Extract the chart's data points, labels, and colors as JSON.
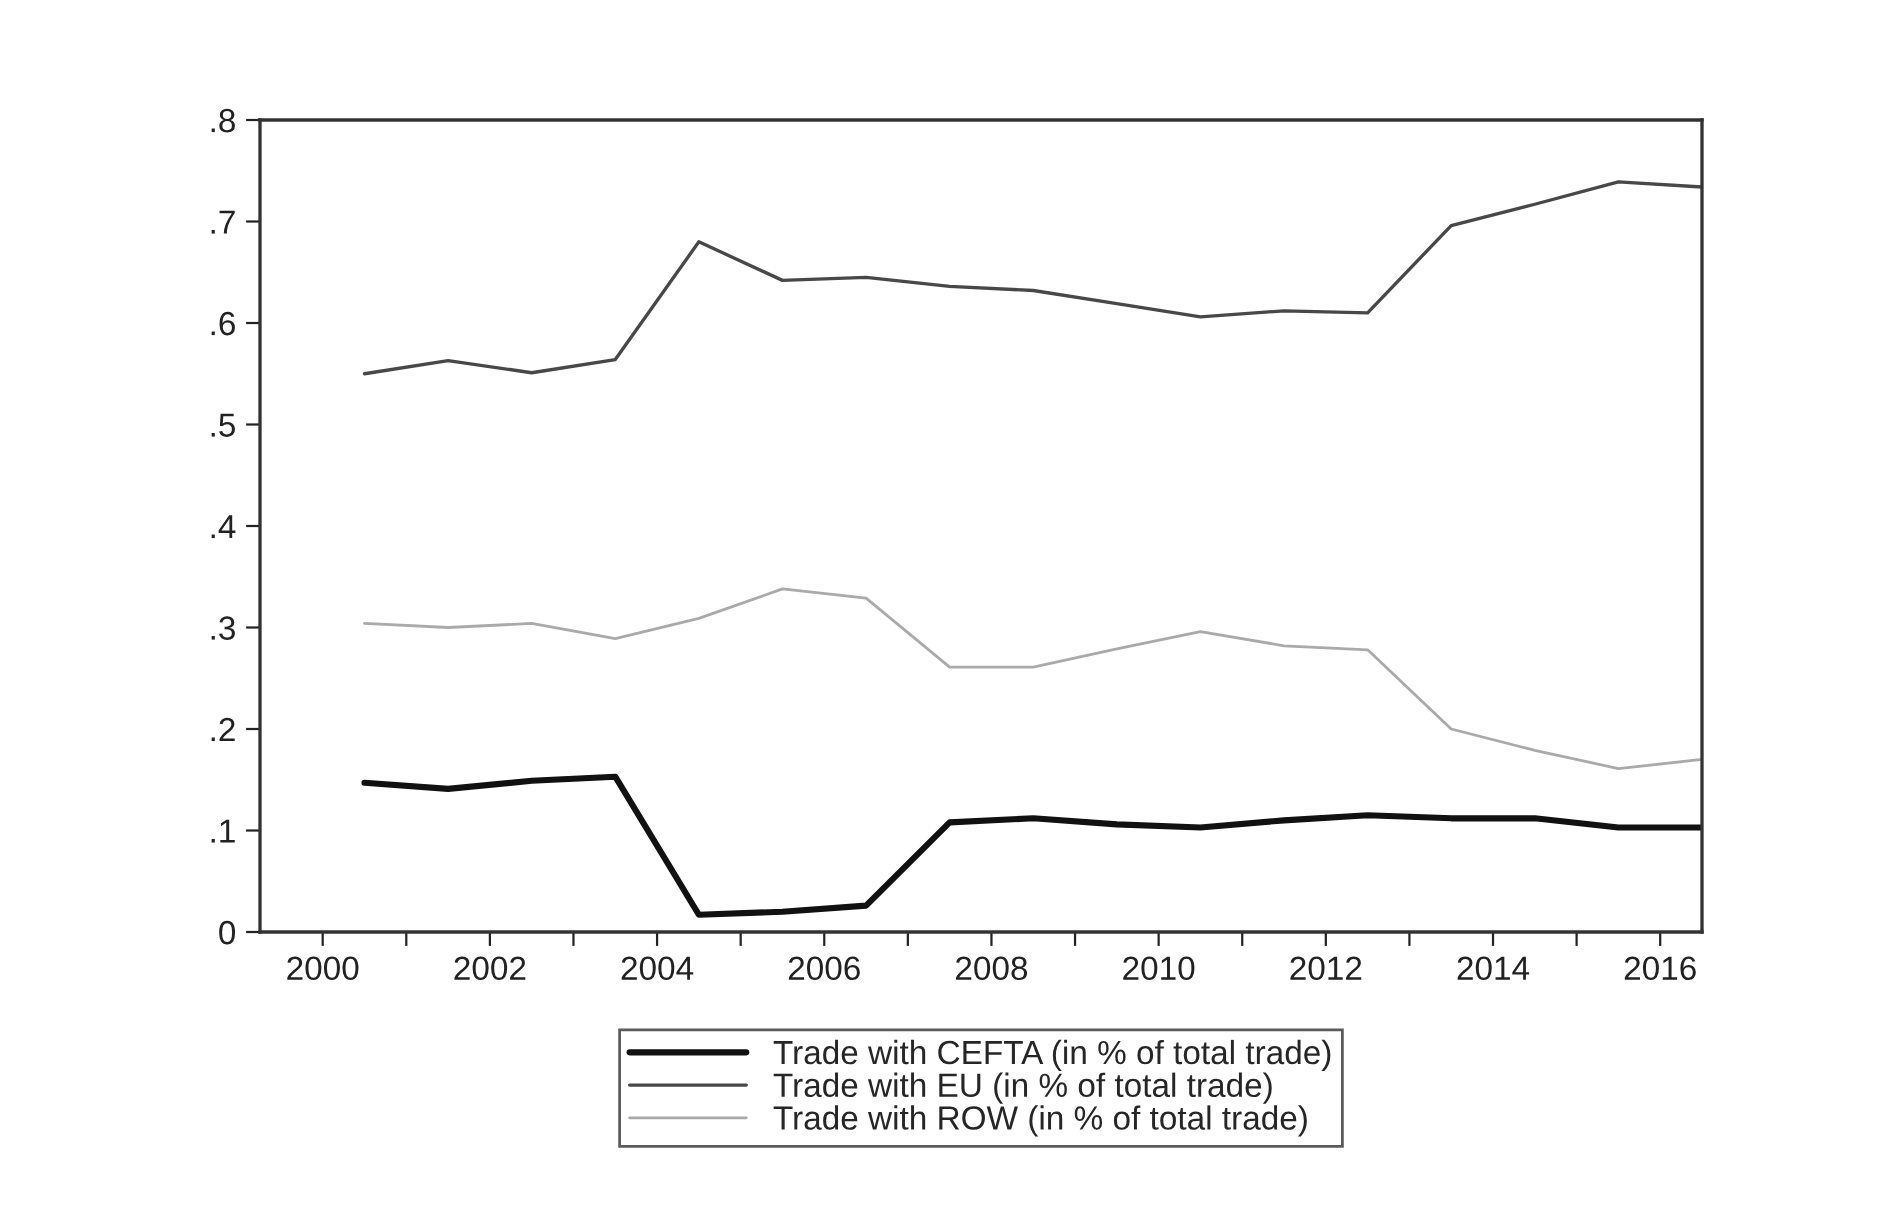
{
  "chart_data": {
    "type": "line",
    "x": [
      2000.5,
      2001.5,
      2002.5,
      2003.5,
      2004.5,
      2005.5,
      2006.5,
      2007.5,
      2008.5,
      2009.5,
      2010.5,
      2011.5,
      2012.5,
      2013.5,
      2014.5,
      2015.5,
      2016.5
    ],
    "series": [
      {
        "name": "Trade with CEFTA (in % of total trade)",
        "color": "#111111",
        "values": [
          0.147,
          0.141,
          0.149,
          0.153,
          0.017,
          0.02,
          0.026,
          0.108,
          0.112,
          0.106,
          0.103,
          0.11,
          0.115,
          0.112,
          0.112,
          0.103,
          0.103
        ]
      },
      {
        "name": "Trade with EU (in % of total trade)",
        "color": "#484848",
        "values": [
          0.55,
          0.563,
          0.551,
          0.564,
          0.68,
          0.642,
          0.645,
          0.636,
          0.632,
          0.619,
          0.606,
          0.612,
          0.61,
          0.696,
          0.717,
          0.739,
          0.734
        ]
      },
      {
        "name": "Trade with ROW (in % of total trade)",
        "color": "#aaaaaa",
        "values": [
          0.304,
          0.3,
          0.304,
          0.289,
          0.309,
          0.338,
          0.329,
          0.261,
          0.261,
          0.279,
          0.296,
          0.282,
          0.278,
          0.2,
          0.179,
          0.161,
          0.17
        ]
      }
    ],
    "xlim": [
      1999.25,
      2016.5
    ],
    "xticks": [
      2000,
      {
        "value": 2001,
        "label": null
      },
      2002,
      {
        "value": 2003,
        "label": null
      },
      2004,
      {
        "value": 2005,
        "label": null
      },
      2006,
      {
        "value": 2007,
        "label": null
      },
      2008,
      {
        "value": 2009,
        "label": null
      },
      2010,
      {
        "value": 2011,
        "label": null
      },
      2012,
      {
        "value": 2013,
        "label": null
      },
      2014,
      {
        "value": 2015,
        "label": null
      },
      2016
    ],
    "ylim": [
      0,
      0.8
    ],
    "yticks": [
      0,
      {
        "value": 0.1,
        "label": ".1"
      },
      {
        "value": 0.2,
        "label": ".2"
      },
      {
        "value": 0.3,
        "label": ".3"
      },
      {
        "value": 0.4,
        "label": ".4"
      },
      {
        "value": 0.5,
        "label": ".5"
      },
      {
        "value": 0.6,
        "label": ".6"
      },
      {
        "value": 0.7,
        "label": ".7"
      },
      {
        "value": 0.8,
        "label": ".8"
      }
    ],
    "grid": false,
    "legend": "bottom"
  }
}
